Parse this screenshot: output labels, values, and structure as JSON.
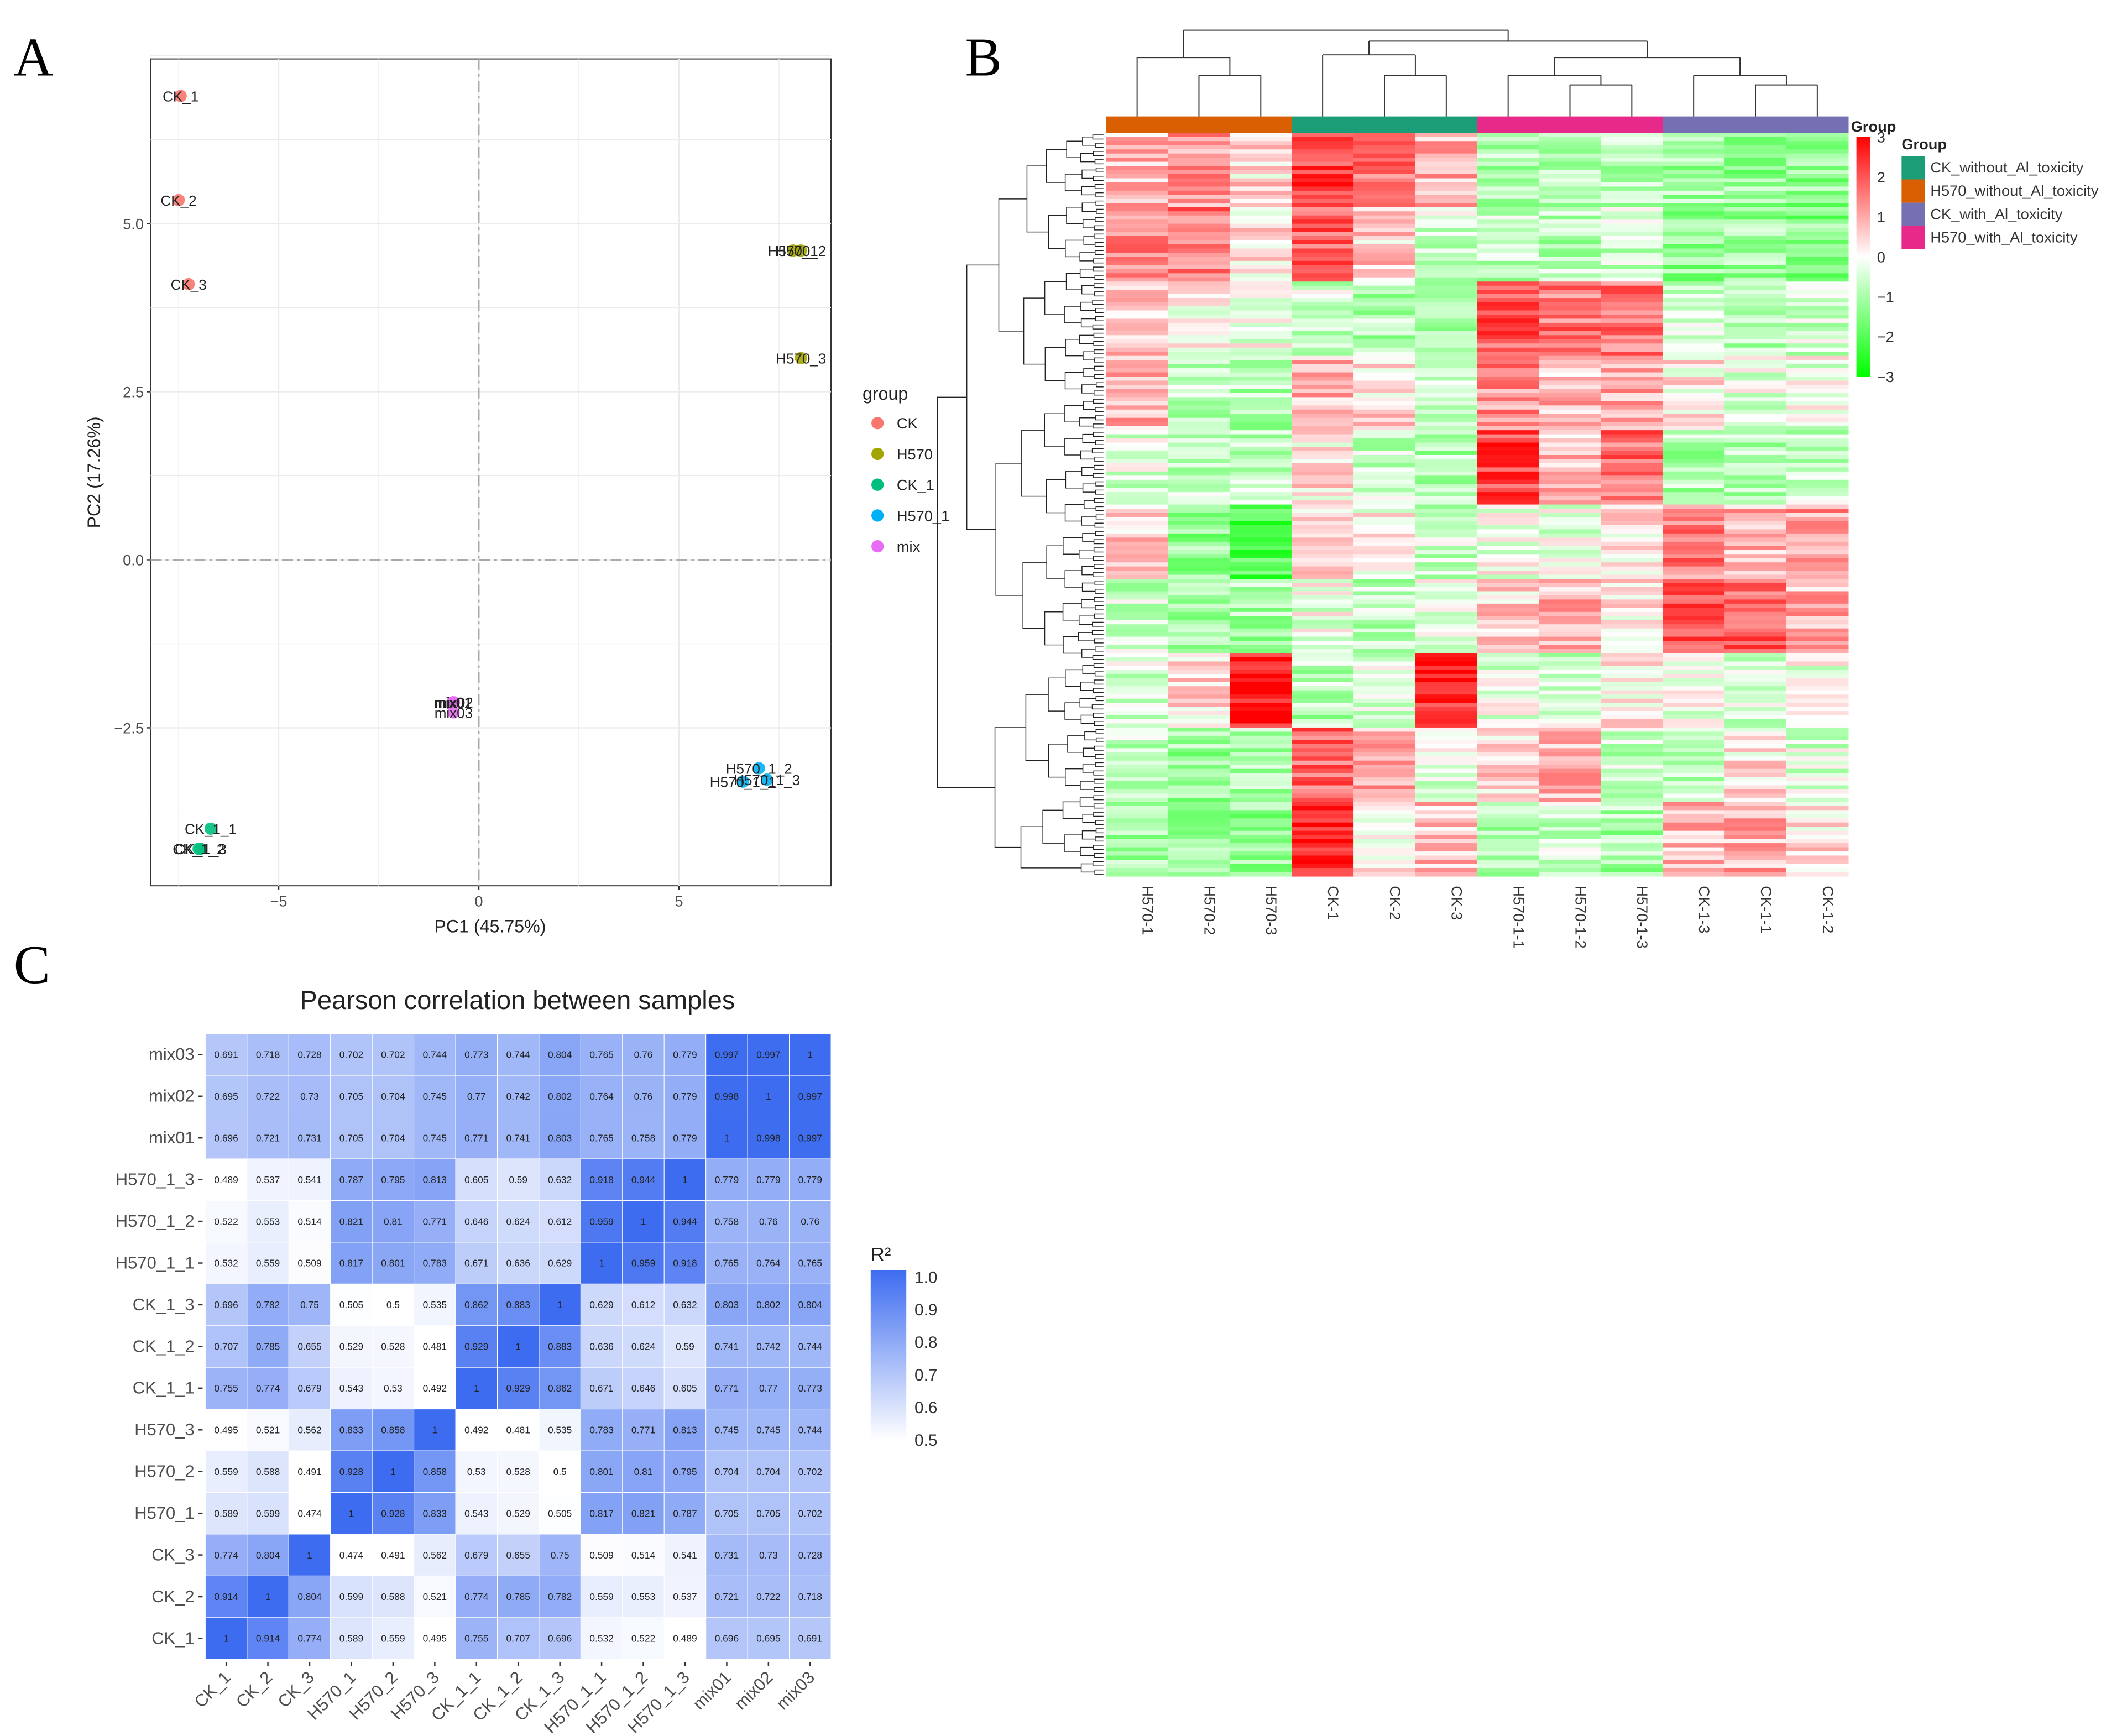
{
  "panels": {
    "a": "A",
    "b": "B",
    "c": "C"
  },
  "chart_data": [
    {
      "type": "scatter",
      "panel": "A",
      "title": "",
      "xlabel": "PC1 (45.75%)",
      "ylabel": "PC2 (17.26%)",
      "xlim": [
        -8.2,
        8.8
      ],
      "ylim": [
        -4.85,
        7.45
      ],
      "xticks": [
        -5,
        0,
        5
      ],
      "yticks": [
        -2.5,
        0.0,
        2.5,
        5.0
      ],
      "xtick_labels": [
        "−5",
        "0",
        "5"
      ],
      "ytick_labels": [
        "−2.5",
        "0.0",
        "2.5",
        "5.0"
      ],
      "grid": true,
      "legend": {
        "title": "group",
        "placement": "right"
      },
      "groups": [
        {
          "name": "CK",
          "color": "#F8766D"
        },
        {
          "name": "H570",
          "color": "#A3A500"
        },
        {
          "name": "CK_1",
          "color": "#00BF7D"
        },
        {
          "name": "H570_1",
          "color": "#00B0F6"
        },
        {
          "name": "mix",
          "color": "#E76BF3"
        }
      ],
      "points": [
        {
          "label": "CK_1",
          "group": "CK",
          "x": -7.45,
          "y": 6.9
        },
        {
          "label": "CK_2",
          "group": "CK",
          "x": -7.5,
          "y": 5.35
        },
        {
          "label": "CK_3",
          "group": "CK",
          "x": -7.25,
          "y": 4.1
        },
        {
          "label": "H570_1",
          "group": "H570",
          "x": 7.85,
          "y": 4.6
        },
        {
          "label": "H570_2",
          "group": "H570",
          "x": 8.05,
          "y": 4.6
        },
        {
          "label": "H570_3",
          "group": "H570",
          "x": 8.05,
          "y": 3.0
        },
        {
          "label": "CK_1_1",
          "group": "CK_1",
          "x": -6.7,
          "y": -4.0
        },
        {
          "label": "CK_1_2",
          "group": "CK_1",
          "x": -7.0,
          "y": -4.3
        },
        {
          "label": "CK_1_3",
          "group": "CK_1",
          "x": -6.95,
          "y": -4.3
        },
        {
          "label": "H570_1_1",
          "group": "H570_1",
          "x": 6.6,
          "y": -3.3
        },
        {
          "label": "H570_1_2",
          "group": "H570_1",
          "x": 7.0,
          "y": -3.1
        },
        {
          "label": "H570_1_3",
          "group": "H570_1",
          "x": 7.2,
          "y": -3.27
        },
        {
          "label": "mix01",
          "group": "mix",
          "x": -0.65,
          "y": -2.12
        },
        {
          "label": "mix02",
          "group": "mix",
          "x": -0.62,
          "y": -2.12
        },
        {
          "label": "mix03",
          "group": "mix",
          "x": -0.63,
          "y": -2.27
        }
      ]
    },
    {
      "type": "heatmap",
      "panel": "B",
      "columns": [
        "H570-1",
        "H570-2",
        "H570-3",
        "CK-1",
        "CK-2",
        "CK-3",
        "H570-1-1",
        "H570-1-2",
        "H570-1-3",
        "CK-1-3",
        "CK-1-1",
        "CK-1-2"
      ],
      "column_groups": [
        "H570_without_Al_toxicity",
        "H570_without_Al_toxicity",
        "H570_without_Al_toxicity",
        "CK_without_Al_toxicity",
        "CK_without_Al_toxicity",
        "CK_without_Al_toxicity",
        "H570_with_Al_toxicity",
        "H570_with_Al_toxicity",
        "H570_with_Al_toxicity",
        "CK_with_Al_toxicity",
        "CK_with_Al_toxicity",
        "CK_with_Al_toxicity"
      ],
      "annotation_title": "Group",
      "legend": {
        "title": "Group",
        "items": [
          {
            "name": "CK_without_Al_toxicity",
            "color": "#1B9E77"
          },
          {
            "name": "H570_without_Al_toxicity",
            "color": "#D95F02"
          },
          {
            "name": "CK_with_Al_toxicity",
            "color": "#7570B3"
          },
          {
            "name": "H570_with_Al_toxicity",
            "color": "#E7298A"
          }
        ]
      },
      "colorbar": {
        "min": -3,
        "max": 3,
        "ticks": [
          "3",
          "2",
          "1",
          "0",
          "−1",
          "−2",
          "−3"
        ],
        "low_color": "#00FF00",
        "mid_color": "#FFFFFF",
        "high_color": "#FF0000"
      },
      "row_block_means": [
        [
          0.8,
          1.2,
          0.4,
          2.2,
          1.5,
          0.9,
          -0.8,
          -0.9,
          -0.8,
          -1.0,
          -1.2,
          -1.3
        ],
        [
          1.3,
          1.6,
          0.3,
          1.8,
          0.6,
          -0.5,
          -0.7,
          -0.8,
          -0.6,
          -1.3,
          -1.1,
          -1.4
        ],
        [
          0.6,
          0.1,
          -0.2,
          -0.5,
          -0.9,
          -0.8,
          1.9,
          1.6,
          1.7,
          -0.6,
          -0.9,
          -0.5
        ],
        [
          0.9,
          -0.7,
          -0.8,
          0.9,
          0.4,
          -0.6,
          1.3,
          0.8,
          1.0,
          0.2,
          -0.3,
          -0.2
        ],
        [
          -0.4,
          -0.6,
          -0.7,
          0.3,
          -0.6,
          -0.9,
          2.2,
          0.7,
          1.8,
          -0.9,
          -0.8,
          -0.6
        ],
        [
          0.5,
          -1.3,
          -2.0,
          0.3,
          0.0,
          -0.6,
          -0.1,
          -0.2,
          0.2,
          1.5,
          0.9,
          1.1
        ],
        [
          -0.6,
          -0.9,
          -1.0,
          -0.2,
          -0.7,
          -0.3,
          0.5,
          0.9,
          0.3,
          2.0,
          1.8,
          0.9
        ],
        [
          -0.5,
          0.4,
          2.8,
          -0.8,
          -0.4,
          2.5,
          -0.3,
          -0.5,
          0.1,
          -0.2,
          -0.4,
          -0.2
        ],
        [
          -0.7,
          -1.1,
          -0.8,
          1.8,
          1.0,
          -0.3,
          0.4,
          0.9,
          -0.6,
          -0.7,
          0.3,
          -0.4
        ],
        [
          -1.1,
          -1.0,
          -1.2,
          2.6,
          0.3,
          0.7,
          -0.9,
          -0.6,
          -1.0,
          0.8,
          0.9,
          0.4
        ]
      ]
    },
    {
      "type": "heatmap",
      "panel": "C",
      "title": "Pearson correlation between samples",
      "legend_title": "R²",
      "colorbar": {
        "min": 0.5,
        "max": 1.0,
        "ticks": [
          "1.0",
          "0.9",
          "0.8",
          "0.7",
          "0.6",
          "0.5"
        ],
        "low_color": "#FFFFFF",
        "high_color": "#3D6CF0"
      },
      "samples": [
        "CK_1",
        "CK_2",
        "CK_3",
        "H570_1",
        "H570_2",
        "H570_3",
        "CK_1_1",
        "CK_1_2",
        "CK_1_3",
        "H570_1_1",
        "H570_1_2",
        "H570_1_3",
        "mix01",
        "mix02",
        "mix03"
      ],
      "matrix": [
        [
          1,
          0.914,
          0.774,
          0.589,
          0.559,
          0.495,
          0.755,
          0.707,
          0.696,
          0.532,
          0.522,
          0.489,
          0.696,
          0.695,
          0.691
        ],
        [
          0.914,
          1,
          0.804,
          0.599,
          0.588,
          0.521,
          0.774,
          0.785,
          0.782,
          0.559,
          0.553,
          0.537,
          0.721,
          0.722,
          0.718
        ],
        [
          0.774,
          0.804,
          1,
          0.474,
          0.491,
          0.562,
          0.679,
          0.655,
          0.75,
          0.509,
          0.514,
          0.541,
          0.731,
          0.73,
          0.728
        ],
        [
          0.589,
          0.599,
          0.474,
          1,
          0.928,
          0.833,
          0.543,
          0.529,
          0.505,
          0.817,
          0.821,
          0.787,
          0.705,
          0.705,
          0.702
        ],
        [
          0.559,
          0.588,
          0.491,
          0.928,
          1,
          0.858,
          0.53,
          0.528,
          0.5,
          0.801,
          0.81,
          0.795,
          0.704,
          0.704,
          0.702
        ],
        [
          0.495,
          0.521,
          0.562,
          0.833,
          0.858,
          1,
          0.492,
          0.481,
          0.535,
          0.783,
          0.771,
          0.813,
          0.745,
          0.745,
          0.744
        ],
        [
          0.755,
          0.774,
          0.679,
          0.543,
          0.53,
          0.492,
          1,
          0.929,
          0.862,
          0.671,
          0.646,
          0.605,
          0.771,
          0.77,
          0.773
        ],
        [
          0.707,
          0.785,
          0.655,
          0.529,
          0.528,
          0.481,
          0.929,
          1,
          0.883,
          0.636,
          0.624,
          0.59,
          0.741,
          0.742,
          0.744
        ],
        [
          0.696,
          0.782,
          0.75,
          0.505,
          0.5,
          0.535,
          0.862,
          0.883,
          1,
          0.629,
          0.612,
          0.632,
          0.803,
          0.802,
          0.804
        ],
        [
          0.532,
          0.559,
          0.509,
          0.817,
          0.801,
          0.783,
          0.671,
          0.636,
          0.629,
          1,
          0.959,
          0.918,
          0.765,
          0.764,
          0.765
        ],
        [
          0.522,
          0.553,
          0.514,
          0.821,
          0.81,
          0.771,
          0.646,
          0.624,
          0.612,
          0.959,
          1,
          0.944,
          0.758,
          0.76,
          0.76
        ],
        [
          0.489,
          0.537,
          0.541,
          0.787,
          0.795,
          0.813,
          0.605,
          0.59,
          0.632,
          0.918,
          0.944,
          1,
          0.779,
          0.779,
          0.779
        ],
        [
          0.696,
          0.721,
          0.731,
          0.705,
          0.704,
          0.745,
          0.771,
          0.741,
          0.803,
          0.765,
          0.758,
          0.779,
          1,
          0.998,
          0.997
        ],
        [
          0.695,
          0.722,
          0.73,
          0.705,
          0.704,
          0.745,
          0.77,
          0.742,
          0.802,
          0.764,
          0.76,
          0.779,
          0.998,
          1,
          0.997
        ],
        [
          0.691,
          0.718,
          0.728,
          0.702,
          0.702,
          0.744,
          0.773,
          0.744,
          0.804,
          0.765,
          0.76,
          0.779,
          0.997,
          0.997,
          1
        ]
      ]
    }
  ]
}
